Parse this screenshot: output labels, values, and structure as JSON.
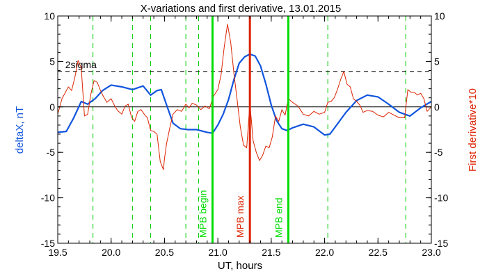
{
  "chart_data": {
    "type": "line",
    "title": "X-variations and first derivative, 13.01.2015",
    "xlabel": "UT, hours",
    "ylabel_left": "deltaX, nT",
    "ylabel_right": "First derivative*10",
    "xlim": [
      19.5,
      23.0
    ],
    "ylim": [
      -15,
      10
    ],
    "xticks": [
      19.5,
      20.0,
      20.5,
      21.0,
      21.5,
      22.0,
      22.5,
      23.0
    ],
    "xtick_labels": [
      "19.5",
      "20.0",
      "20.5",
      "21.0",
      "21.5",
      "22.0",
      "22.5",
      "23.0"
    ],
    "yticks": [
      -15,
      -10,
      -5,
      0,
      5,
      10
    ],
    "ytick_labels": [
      "-15",
      "-10",
      "-5",
      "0",
      "5",
      "10"
    ],
    "threshold": {
      "label": "2sigma",
      "value": 3.9
    },
    "green_dashed_lines": [
      19.83,
      20.2,
      20.37,
      20.7,
      20.82,
      22.03,
      22.76
    ],
    "markers": [
      {
        "label": "MPB begin",
        "x": 20.95,
        "color": "#00dd00"
      },
      {
        "label": "MPB max",
        "x": 21.3,
        "color": "#dd2200"
      },
      {
        "label": "MPB end",
        "x": 21.66,
        "color": "#00dd00"
      }
    ],
    "colors": {
      "deltaX": "#1155dd",
      "derivative": "#dd2200",
      "threshold": "#000000",
      "dashed": "#00cc00"
    },
    "series": [
      {
        "name": "deltaX, nT",
        "color": "#1155dd",
        "x": [
          19.5,
          19.58,
          19.65,
          19.72,
          19.78,
          19.85,
          19.92,
          20.0,
          20.1,
          20.2,
          20.3,
          20.37,
          20.43,
          20.47,
          20.52,
          20.58,
          20.65,
          20.72,
          20.8,
          20.9,
          20.95,
          21.0,
          21.05,
          21.1,
          21.15,
          21.2,
          21.25,
          21.3,
          21.35,
          21.4,
          21.45,
          21.5,
          21.55,
          21.6,
          21.65,
          21.7,
          21.8,
          21.9,
          22.0,
          22.05,
          22.1,
          22.2,
          22.3,
          22.4,
          22.5,
          22.6,
          22.7,
          22.8,
          22.9,
          23.0
        ],
        "values": [
          -2.8,
          -2.7,
          -1.2,
          0.6,
          0.3,
          0.9,
          1.8,
          2.4,
          2.2,
          1.9,
          2.3,
          1.3,
          1.8,
          1.9,
          0.2,
          -1.8,
          -2.4,
          -2.5,
          -2.5,
          -2.8,
          -2.9,
          -2.0,
          -0.8,
          0.8,
          3.0,
          4.8,
          5.5,
          5.8,
          5.6,
          4.5,
          2.5,
          0.2,
          -1.5,
          -2.4,
          -2.6,
          -2.3,
          -1.9,
          -2.2,
          -3.1,
          -3.0,
          -2.2,
          -0.6,
          0.7,
          1.3,
          1.1,
          0.3,
          -0.6,
          -1.0,
          -0.1,
          0.6
        ]
      },
      {
        "name": "First derivative*10",
        "color": "#dd2200",
        "x": [
          19.5,
          19.54,
          19.6,
          19.63,
          19.66,
          19.69,
          19.72,
          19.75,
          19.78,
          19.81,
          19.84,
          19.87,
          19.9,
          19.93,
          19.96,
          20.0,
          20.03,
          20.06,
          20.1,
          20.13,
          20.16,
          20.19,
          20.22,
          20.25,
          20.28,
          20.31,
          20.34,
          20.37,
          20.4,
          20.43,
          20.46,
          20.49,
          20.5,
          20.52,
          20.55,
          20.58,
          20.62,
          20.66,
          20.7,
          20.73,
          20.76,
          20.8,
          20.84,
          20.88,
          20.92,
          20.96,
          21.0,
          21.03,
          21.06,
          21.09,
          21.12,
          21.15,
          21.18,
          21.21,
          21.24,
          21.27,
          21.3,
          21.33,
          21.36,
          21.39,
          21.42,
          21.45,
          21.48,
          21.51,
          21.54,
          21.57,
          21.6,
          21.63,
          21.66,
          21.7,
          21.75,
          21.8,
          21.85,
          21.9,
          21.95,
          22.0,
          22.03,
          22.06,
          22.09,
          22.12,
          22.15,
          22.18,
          22.21,
          22.24,
          22.27,
          22.3,
          22.33,
          22.36,
          22.4,
          22.45,
          22.5,
          22.55,
          22.6,
          22.65,
          22.7,
          22.75,
          22.78,
          22.81,
          22.84,
          22.87,
          22.9,
          22.93,
          22.96,
          23.0
        ],
        "values": [
          -0.8,
          0.9,
          2.2,
          1.8,
          3.2,
          5.1,
          4.3,
          -1.0,
          -0.8,
          1.4,
          2.9,
          2.7,
          1.8,
          1.1,
          0.5,
          0.9,
          0.2,
          -0.4,
          -0.8,
          0.1,
          0.3,
          -1.1,
          -1.6,
          -0.5,
          -0.3,
          -0.8,
          -1.2,
          -2.6,
          -2.7,
          -3.0,
          -6.0,
          -6.9,
          -5.7,
          -4.0,
          -2.3,
          -0.8,
          -0.3,
          -0.5,
          0.3,
          -0.1,
          0.4,
          0.2,
          -0.3,
          0.1,
          -0.2,
          1.2,
          1.9,
          3.5,
          6.6,
          9.1,
          7.1,
          3.7,
          0.8,
          -2.2,
          -4.2,
          -4.5,
          0.4,
          -3.7,
          -5.0,
          -5.9,
          -5.3,
          -4.3,
          -4.5,
          -3.3,
          -1.0,
          -1.6,
          -0.3,
          -0.9,
          0.9,
          0.5,
          0.1,
          -0.8,
          -1.0,
          -0.5,
          -0.8,
          -0.6,
          0.5,
          0.6,
          1.0,
          1.9,
          3.0,
          3.9,
          2.5,
          2.2,
          0.9,
          0.6,
          0.2,
          -0.6,
          -0.4,
          -0.5,
          -0.9,
          -1.1,
          -0.6,
          -0.9,
          -1.2,
          -1.2,
          1.9,
          1.6,
          1.6,
          1.3,
          1.5,
          0.9,
          -0.5,
          0.0
        ]
      }
    ],
    "zero_line": 0
  }
}
